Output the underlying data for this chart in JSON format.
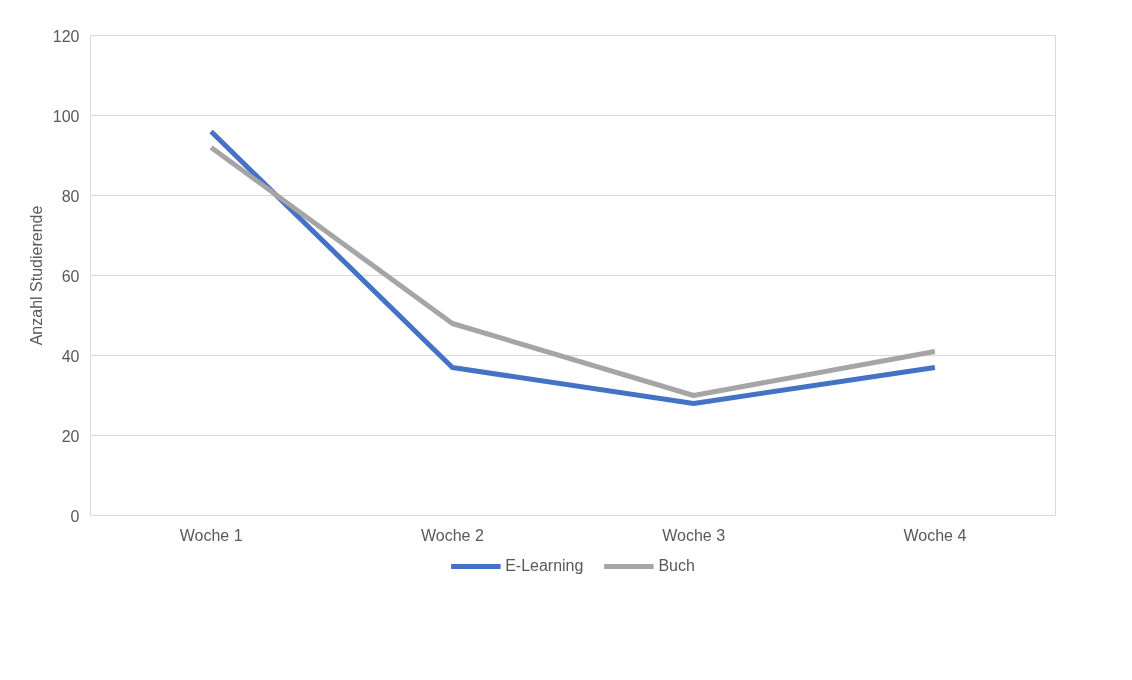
{
  "chart_data": {
    "type": "line",
    "ylabel": "Anzahl Studierende",
    "categories": [
      "Woche 1",
      "Woche 2",
      "Woche 3",
      "Woche 4"
    ],
    "series": [
      {
        "name": "E-Learning",
        "color": "#4472c4",
        "values": [
          96,
          37,
          28,
          37
        ]
      },
      {
        "name": "Buch",
        "color": "#a5a5a5",
        "values": [
          92,
          48,
          30,
          41
        ]
      }
    ],
    "ylim": [
      0,
      120
    ],
    "yticks": [
      0,
      20,
      40,
      60,
      80,
      100,
      120
    ],
    "grid": "y",
    "legend": "bottom",
    "line_style": "solid",
    "marker": "none"
  }
}
